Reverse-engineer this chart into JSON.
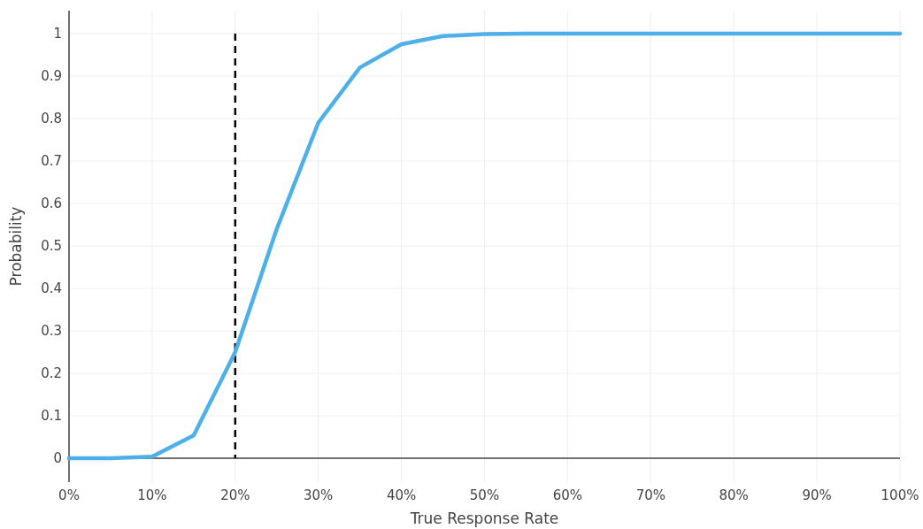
{
  "chart_data": {
    "type": "line",
    "xlabel": "True Response Rate",
    "ylabel": "Probability",
    "x": [
      0,
      5,
      10,
      15,
      20,
      25,
      30,
      35,
      40,
      45,
      50,
      55,
      60,
      65,
      70,
      75,
      80,
      85,
      90,
      95,
      100
    ],
    "series": [
      {
        "color": "#4fb0e8",
        "values": [
          0,
          0,
          0.004,
          0.054,
          0.25,
          0.54,
          0.79,
          0.92,
          0.975,
          0.994,
          0.999,
          1,
          1,
          1,
          1,
          1,
          1,
          1,
          1,
          1,
          1
        ]
      }
    ],
    "xlim": [
      0,
      100
    ],
    "xticks": [
      {
        "value": 0,
        "label": "0%"
      },
      {
        "value": 10,
        "label": "10%"
      },
      {
        "value": 20,
        "label": "20%"
      },
      {
        "value": 30,
        "label": "30%"
      },
      {
        "value": 40,
        "label": "40%"
      },
      {
        "value": 50,
        "label": "50%"
      },
      {
        "value": 60,
        "label": "60%"
      },
      {
        "value": 70,
        "label": "70%"
      },
      {
        "value": 80,
        "label": "80%"
      },
      {
        "value": 90,
        "label": "90%"
      },
      {
        "value": 100,
        "label": "100%"
      }
    ],
    "ylim": [
      -0.056,
      1.054
    ],
    "yticks": [
      0,
      0.1,
      0.2,
      0.3,
      0.4,
      0.5,
      0.6,
      0.7,
      0.8,
      0.9,
      1
    ],
    "grid": true,
    "marker": "none",
    "line_style": "solid",
    "ref_lines": [
      {
        "axis": "x",
        "value": 20,
        "color": "#000000",
        "line_style": "dashed"
      }
    ]
  }
}
